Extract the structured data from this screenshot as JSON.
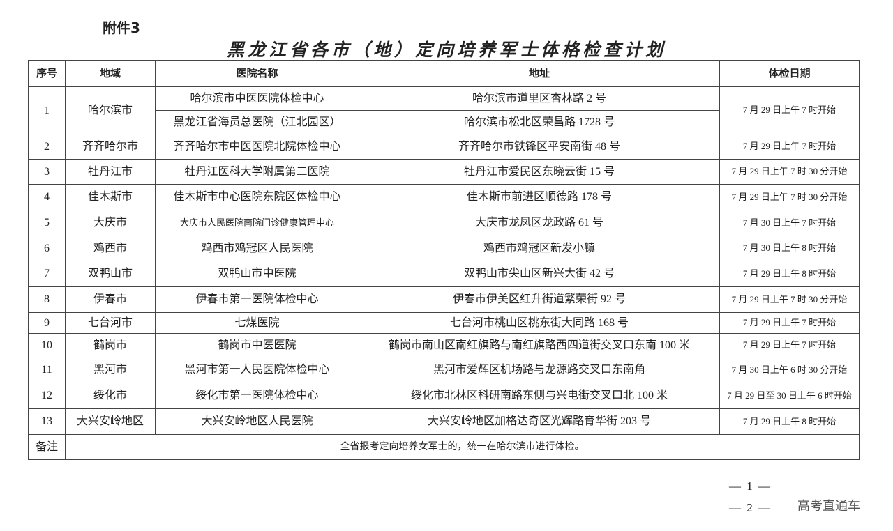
{
  "attachment": "附件3",
  "title": "黑龙江省各市（地）定向培养军士体格检查计划",
  "headers": [
    "序号",
    "地域",
    "医院名称",
    "地址",
    "体检日期"
  ],
  "row1": {
    "no": "1",
    "region": "哈尔滨市",
    "h1": "哈尔滨市中医医院体检中心",
    "a1": "哈尔滨市道里区杏林路 2 号",
    "h2": "黑龙江省海员总医院（江北园区）",
    "a2": "哈尔滨市松北区荣昌路 1728 号",
    "date": "7 月 29 日上午 7 时开始"
  },
  "rows": [
    [
      "2",
      "齐齐哈尔市",
      "齐齐哈尔市中医医院北院体检中心",
      "齐齐哈尔市铁锋区平安南街 48 号",
      "7 月 29 日上午 7 时开始"
    ],
    [
      "3",
      "牡丹江市",
      "牡丹江医科大学附属第二医院",
      "牡丹江市爱民区东晓云街 15 号",
      "7 月 29 日上午 7 时 30 分开始"
    ],
    [
      "4",
      "佳木斯市",
      "佳木斯市中心医院东院区体检中心",
      "佳木斯市前进区顺德路 178 号",
      "7 月 29 日上午 7 时 30 分开始"
    ],
    [
      "5",
      "大庆市",
      "大庆市人民医院南院门诊健康管理中心",
      "大庆市龙凤区龙政路 61 号",
      "7 月 30 日上午 7 时开始"
    ],
    [
      "6",
      "鸡西市",
      "鸡西市鸡冠区人民医院",
      "鸡西市鸡冠区新发小镇",
      "7 月 30 日上午 8 时开始"
    ],
    [
      "7",
      "双鸭山市",
      "双鸭山市中医院",
      "双鸭山市尖山区新兴大街 42 号",
      "7 月 29 日上午 8 时开始"
    ],
    [
      "8",
      "伊春市",
      "伊春市第一医院体检中心",
      "伊春市伊美区红升街道繁荣街 92 号",
      "7 月 29 日上午 7 时 30 分开始"
    ],
    [
      "9",
      "七台河市",
      "七煤医院",
      "七台河市桃山区桃东街大同路 168 号",
      "7 月 29 日上午 7 时开始"
    ],
    [
      "10",
      "鹤岗市",
      "鹤岗市中医医院",
      "鹤岗市南山区南红旗路与南红旗路西四道街交叉口东南 100 米",
      "7 月 29 日上午 7 时开始"
    ],
    [
      "11",
      "黑河市",
      "黑河市第一人民医院体检中心",
      "黑河市爱辉区机场路与龙源路交叉口东南角",
      "7 月 30 日上午 6 时 30 分开始"
    ],
    [
      "12",
      "绥化市",
      "绥化市第一医院体检中心",
      "绥化市北林区科研南路东侧与兴电街交叉口北 100 米",
      "7 月 29 日至 30 日上午 6 时开始"
    ],
    [
      "13",
      "大兴安岭地区",
      "大兴安岭地区人民医院",
      "大兴安岭地区加格达奇区光辉路育华街 203 号",
      "7 月 29 日上午 8 时开始"
    ]
  ],
  "note_label": "备注",
  "note": "全省报考定向培养女军士的，统一在哈尔滨市进行体检。",
  "page1": "— 1 —",
  "page2": "— 2 —",
  "watermark": "高考直通车"
}
